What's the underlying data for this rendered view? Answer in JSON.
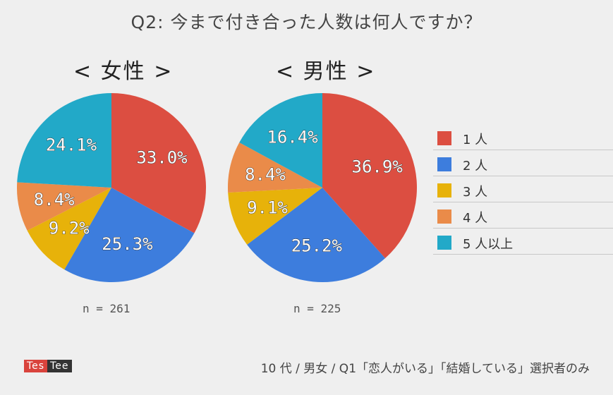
{
  "title": "Q2: 今まで付き合った人数は何人ですか？",
  "colors": [
    "#dc4e41",
    "#3d7ddd",
    "#e7b20a",
    "#ea8b49",
    "#22a9c8"
  ],
  "legend": [
    "1 人",
    "2 人",
    "3 人",
    "4 人",
    "5 人以上"
  ],
  "footer": "10 代  / 男女  / Q1「恋人がいる」「結婚している」選択者のみ",
  "logo": {
    "part1": "Tes",
    "part2": "Tee"
  },
  "chart_data": [
    {
      "type": "pie",
      "title": "< 女性 >",
      "n_label": "n = 261",
      "categories": [
        "1 人",
        "2 人",
        "3 人",
        "4 人",
        "5 人以上"
      ],
      "values": [
        33.0,
        25.3,
        9.2,
        8.4,
        24.1
      ],
      "value_labels": [
        "33.0%",
        "25.3%",
        "9.2%",
        "8.4%",
        "24.1%"
      ],
      "legend_placement": "right"
    },
    {
      "type": "pie",
      "title": "< 男性 >",
      "n_label": "n = 225",
      "categories": [
        "1 人",
        "2 人",
        "3 人",
        "4 人",
        "5 人以上"
      ],
      "values": [
        36.9,
        25.2,
        9.1,
        8.4,
        16.4
      ],
      "value_labels": [
        "36.9%",
        "25.2%",
        "9.1%",
        "8.4%",
        "16.4%"
      ],
      "legend_placement": "right"
    }
  ]
}
